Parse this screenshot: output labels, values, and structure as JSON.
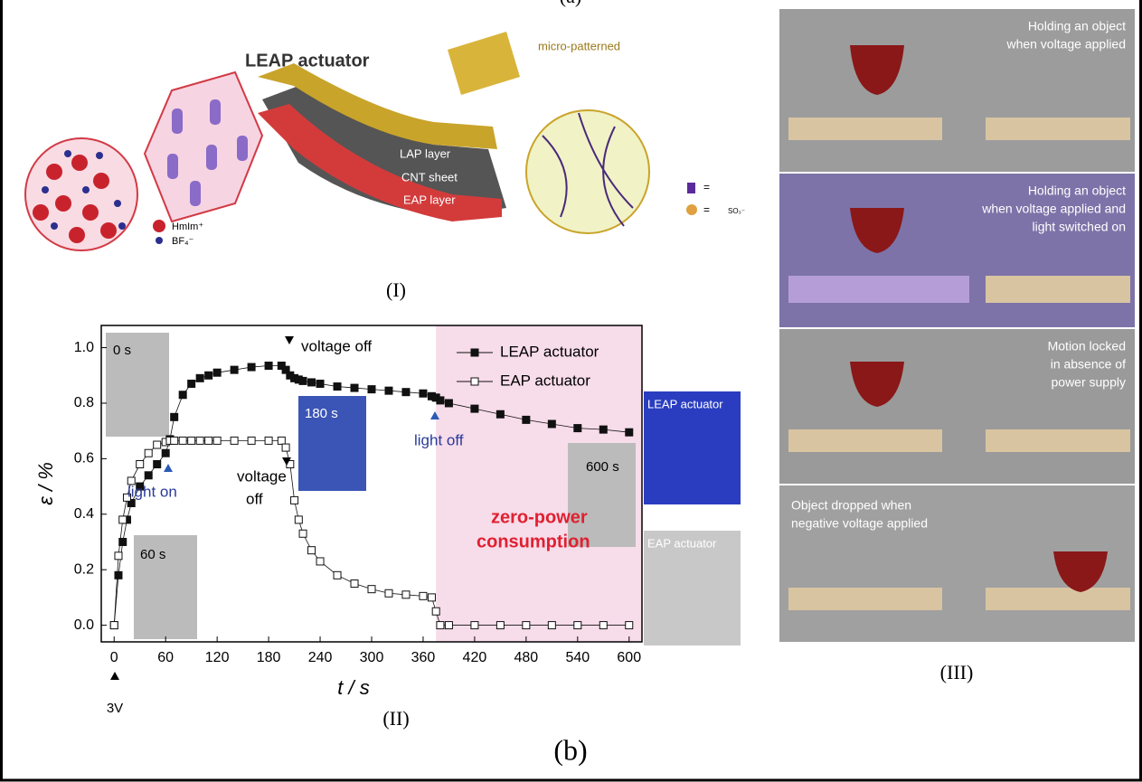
{
  "top_label": "(a)",
  "figure_label": "(b)",
  "panel_1": {
    "label": "(I)",
    "title": "LEAP actuator",
    "note": "micro-patterned",
    "layers": [
      "LAP layer",
      "CNT sheet",
      "EAP layer"
    ],
    "ions": [
      "HmIm⁺",
      "BF₄⁻"
    ],
    "legend": [
      "=",
      "=",
      "SO₃⁻"
    ]
  },
  "chart_data": {
    "type": "scatter",
    "panel_label": "(II)",
    "x_label": "t / s",
    "y_label": "ε / %",
    "x": [
      0,
      5,
      10,
      15,
      20,
      30,
      40,
      50,
      60,
      65,
      70,
      80,
      90,
      100,
      110,
      120,
      140,
      160,
      180,
      195,
      200,
      205,
      210,
      215,
      220,
      230,
      240,
      260,
      280,
      300,
      320,
      340,
      360,
      370,
      375,
      380,
      390,
      420,
      450,
      480,
      510,
      540,
      570,
      600
    ],
    "series": [
      {
        "name": "LEAP actuator",
        "color": "#111111",
        "marker": "filled",
        "values": [
          0,
          0.18,
          0.3,
          0.38,
          0.44,
          0.5,
          0.54,
          0.58,
          0.62,
          0.67,
          0.75,
          0.83,
          0.87,
          0.89,
          0.9,
          0.91,
          0.92,
          0.93,
          0.935,
          0.935,
          0.92,
          0.9,
          0.89,
          0.885,
          0.88,
          0.875,
          0.87,
          0.86,
          0.855,
          0.85,
          0.845,
          0.84,
          0.835,
          0.825,
          0.82,
          0.81,
          0.8,
          0.78,
          0.76,
          0.74,
          0.725,
          0.71,
          0.705,
          0.695
        ]
      },
      {
        "name": "EAP actuator",
        "color": "#111111",
        "marker": "open",
        "values": [
          0,
          0.25,
          0.38,
          0.46,
          0.52,
          0.58,
          0.62,
          0.65,
          0.66,
          0.665,
          0.665,
          0.665,
          0.665,
          0.665,
          0.665,
          0.665,
          0.665,
          0.665,
          0.665,
          0.665,
          0.64,
          0.58,
          0.45,
          0.38,
          0.33,
          0.27,
          0.23,
          0.18,
          0.15,
          0.13,
          0.115,
          0.11,
          0.105,
          0.1,
          0.05,
          0,
          0,
          0,
          0,
          0,
          0,
          0,
          0,
          0
        ]
      }
    ],
    "xlim": [
      -15,
      615
    ],
    "ylim": [
      -0.06,
      1.08
    ],
    "xticks": [
      0,
      60,
      120,
      180,
      240,
      300,
      360,
      420,
      480,
      540,
      600
    ],
    "yticks": [
      {
        "value": 0,
        "label": "0.0"
      },
      0.2,
      0.4,
      0.6,
      0.8,
      {
        "value": 1,
        "label": "1.0"
      }
    ],
    "shaded_xrange": [
      375,
      615
    ],
    "shaded_color": "#f7dcea",
    "legend": "upper right",
    "annotations": [
      "voltage off",
      "light off",
      "light on",
      "voltage",
      "off",
      "3V",
      "zero-power",
      "consumption",
      "0 s",
      "60 s",
      "180 s",
      "600 s",
      "LEAP actuator",
      "EAP actuator"
    ]
  },
  "panel_3": {
    "label": "(III)",
    "captions": [
      [
        "Holding an object",
        "when voltage applied"
      ],
      [
        "Holding an object",
        "when voltage applied and",
        "light switched on"
      ],
      [
        "Motion locked",
        "in absence of",
        "power supply"
      ],
      [
        "Object dropped when",
        "negative voltage applied"
      ]
    ]
  }
}
